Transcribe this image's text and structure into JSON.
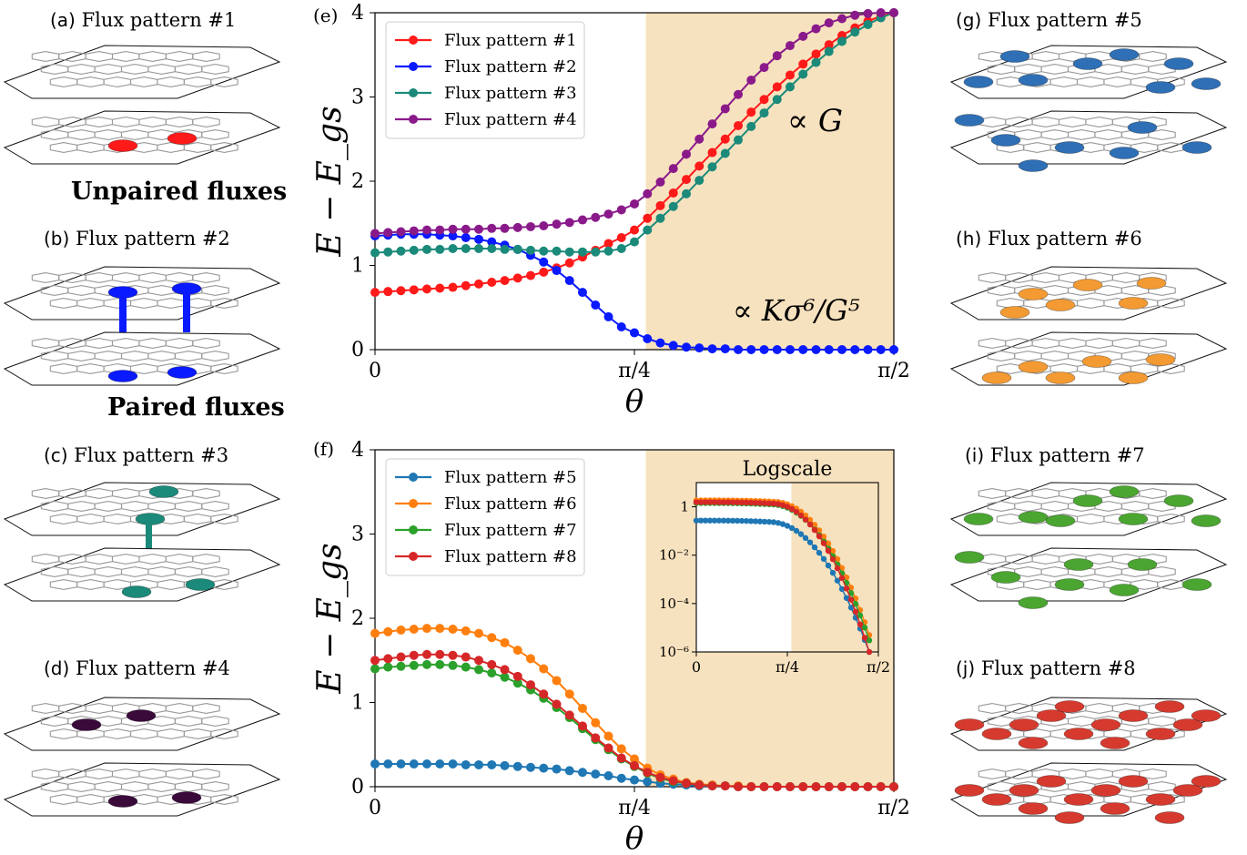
{
  "captions": {
    "a": {
      "label": "(a)",
      "text": "Flux pattern #1"
    },
    "b": {
      "label": "(b)",
      "text": "Flux pattern #2"
    },
    "c": {
      "label": "(c)",
      "text": "Flux pattern #3"
    },
    "d": {
      "label": "(d)",
      "text": "Flux pattern #4"
    },
    "g": {
      "label": "(g)",
      "text": "Flux pattern #5"
    },
    "h": {
      "label": "(h)",
      "text": "Flux pattern #6"
    },
    "i": {
      "label": "(i)",
      "text": "Flux pattern #7"
    },
    "j": {
      "label": "(j)",
      "text": "Flux pattern #8"
    }
  },
  "annotations": {
    "unpaired": "Unpaired fluxes",
    "paired": "Paired fluxes",
    "propto_g": "∝ G",
    "propto_k": "∝ Kσ⁶/G⁵"
  },
  "lattice_colors": {
    "p1": "#ff1a1a",
    "p2": "#0a1aff",
    "p3": "#1b8a7a",
    "p4": "#3a0a3a",
    "p5": "#2f6fb5",
    "p6": "#f39a33",
    "p7": "#4aa630",
    "p8": "#d63a2e"
  },
  "chart_data": [
    {
      "panel": "(e)",
      "type": "line",
      "xlabel": "θ",
      "ylabel": "E − E_gs",
      "xlim": [
        0,
        1.5708
      ],
      "ylim": [
        0,
        4
      ],
      "xticks": [
        {
          "v": 0,
          "label": "0"
        },
        {
          "v": 0.7854,
          "label": "π/4"
        },
        {
          "v": 1.5708,
          "label": "π/2"
        }
      ],
      "yticks": [
        0,
        1,
        2,
        3,
        4
      ],
      "shade_from": 0.82,
      "shade_color": "#f7e2bf",
      "legend": "top-left",
      "series": [
        {
          "name": "Flux pattern #1",
          "color": "#ff1a1a",
          "x": [
            0,
            0.0393,
            0.0785,
            0.1178,
            0.1571,
            0.1963,
            0.2356,
            0.2749,
            0.3142,
            0.3534,
            0.3927,
            0.432,
            0.4712,
            0.5105,
            0.5498,
            0.589,
            0.6283,
            0.6676,
            0.7069,
            0.7461,
            0.7854,
            0.8247,
            0.8639,
            0.9032,
            0.9425,
            0.9817,
            1.021,
            1.0603,
            1.0996,
            1.1388,
            1.1781,
            1.2174,
            1.2566,
            1.2959,
            1.3352,
            1.3744,
            1.4137,
            1.453,
            1.4923,
            1.5315,
            1.5708
          ],
          "y": [
            0.68,
            0.69,
            0.7,
            0.71,
            0.72,
            0.73,
            0.74,
            0.76,
            0.78,
            0.8,
            0.82,
            0.85,
            0.88,
            0.92,
            0.97,
            1.03,
            1.1,
            1.18,
            1.26,
            1.33,
            1.42,
            1.56,
            1.71,
            1.86,
            2.02,
            2.18,
            2.34,
            2.5,
            2.66,
            2.82,
            2.97,
            3.12,
            3.26,
            3.39,
            3.51,
            3.62,
            3.73,
            3.82,
            3.9,
            3.96,
            4.0
          ]
        },
        {
          "name": "Flux pattern #2",
          "color": "#0a1aff",
          "x": [
            0,
            0.0393,
            0.0785,
            0.1178,
            0.1571,
            0.1963,
            0.2356,
            0.2749,
            0.3142,
            0.3534,
            0.3927,
            0.432,
            0.4712,
            0.5105,
            0.5498,
            0.589,
            0.6283,
            0.6676,
            0.7069,
            0.7461,
            0.7854,
            0.8247,
            0.8639,
            0.9032,
            0.9425,
            0.9817,
            1.021,
            1.0603,
            1.0996,
            1.1388,
            1.1781,
            1.2174,
            1.2566,
            1.2959,
            1.3352,
            1.3744,
            1.4137,
            1.453,
            1.4923,
            1.5315,
            1.5708
          ],
          "y": [
            1.35,
            1.36,
            1.37,
            1.37,
            1.37,
            1.36,
            1.35,
            1.33,
            1.31,
            1.28,
            1.24,
            1.19,
            1.12,
            1.04,
            0.94,
            0.82,
            0.68,
            0.53,
            0.39,
            0.27,
            0.2,
            0.13,
            0.08,
            0.05,
            0.03,
            0.02,
            0.01,
            0.01,
            0.0,
            0.0,
            0.0,
            0.0,
            0.0,
            0.0,
            0.0,
            0.0,
            0.0,
            0.0,
            0.0,
            0.0,
            0.0
          ]
        },
        {
          "name": "Flux pattern #3",
          "color": "#1b8a7a",
          "x": [
            0,
            0.0393,
            0.0785,
            0.1178,
            0.1571,
            0.1963,
            0.2356,
            0.2749,
            0.3142,
            0.3534,
            0.3927,
            0.432,
            0.4712,
            0.5105,
            0.5498,
            0.589,
            0.6283,
            0.6676,
            0.7069,
            0.7461,
            0.7854,
            0.8247,
            0.8639,
            0.9032,
            0.9425,
            0.9817,
            1.021,
            1.0603,
            1.0996,
            1.1388,
            1.1781,
            1.2174,
            1.2566,
            1.2959,
            1.3352,
            1.3744,
            1.4137,
            1.453,
            1.4923,
            1.5315,
            1.5708
          ],
          "y": [
            1.15,
            1.16,
            1.17,
            1.18,
            1.19,
            1.19,
            1.2,
            1.2,
            1.2,
            1.2,
            1.19,
            1.19,
            1.18,
            1.17,
            1.17,
            1.16,
            1.16,
            1.16,
            1.17,
            1.2,
            1.28,
            1.42,
            1.56,
            1.7,
            1.85,
            2.01,
            2.17,
            2.33,
            2.49,
            2.65,
            2.81,
            2.97,
            3.12,
            3.27,
            3.41,
            3.54,
            3.66,
            3.77,
            3.86,
            3.94,
            4.0
          ]
        },
        {
          "name": "Flux pattern #4",
          "color": "#8a1a8a",
          "x": [
            0,
            0.0393,
            0.0785,
            0.1178,
            0.1571,
            0.1963,
            0.2356,
            0.2749,
            0.3142,
            0.3534,
            0.3927,
            0.432,
            0.4712,
            0.5105,
            0.5498,
            0.589,
            0.6283,
            0.6676,
            0.7069,
            0.7461,
            0.7854,
            0.8247,
            0.8639,
            0.9032,
            0.9425,
            0.9817,
            1.021,
            1.0603,
            1.0996,
            1.1388,
            1.1781,
            1.2174,
            1.2566,
            1.2959,
            1.3352,
            1.3744,
            1.4137,
            1.453,
            1.4923,
            1.5315,
            1.5708
          ],
          "y": [
            1.38,
            1.39,
            1.4,
            1.41,
            1.42,
            1.42,
            1.43,
            1.43,
            1.43,
            1.44,
            1.44,
            1.45,
            1.46,
            1.47,
            1.49,
            1.51,
            1.54,
            1.57,
            1.61,
            1.66,
            1.73,
            1.85,
            1.99,
            2.15,
            2.32,
            2.5,
            2.68,
            2.86,
            3.03,
            3.2,
            3.35,
            3.49,
            3.61,
            3.72,
            3.81,
            3.88,
            3.93,
            3.97,
            3.99,
            4.0,
            4.0
          ]
        }
      ]
    },
    {
      "panel": "(f)",
      "type": "line",
      "xlabel": "θ",
      "ylabel": "E − E_gs",
      "xlim": [
        0,
        1.5708
      ],
      "ylim": [
        0,
        4
      ],
      "xticks": [
        {
          "v": 0,
          "label": "0"
        },
        {
          "v": 0.7854,
          "label": "π/4"
        },
        {
          "v": 1.5708,
          "label": "π/2"
        }
      ],
      "yticks": [
        0,
        1,
        2,
        3,
        4
      ],
      "shade_from": 0.82,
      "shade_color": "#f7e2bf",
      "legend": "top-left",
      "series": [
        {
          "name": "Flux pattern #5",
          "color": "#1f77b4",
          "x": [
            0,
            0.0393,
            0.0785,
            0.1178,
            0.1571,
            0.1963,
            0.2356,
            0.2749,
            0.3142,
            0.3534,
            0.3927,
            0.432,
            0.4712,
            0.5105,
            0.5498,
            0.589,
            0.6283,
            0.6676,
            0.7069,
            0.7461,
            0.7854,
            0.8247,
            0.8639,
            0.9032,
            0.9425,
            0.9817,
            1.021,
            1.0603,
            1.0996,
            1.1388,
            1.1781,
            1.2174,
            1.2566,
            1.2959,
            1.3352,
            1.3744,
            1.4137,
            1.453,
            1.4923,
            1.5315,
            1.5708
          ],
          "y": [
            0.27,
            0.27,
            0.27,
            0.27,
            0.27,
            0.27,
            0.27,
            0.26,
            0.26,
            0.26,
            0.25,
            0.24,
            0.23,
            0.22,
            0.21,
            0.19,
            0.17,
            0.15,
            0.13,
            0.1,
            0.08,
            0.06,
            0.04,
            0.03,
            0.02,
            0.01,
            0.01,
            0.01,
            0.0,
            0.0,
            0.0,
            0.0,
            0.0,
            0.0,
            0.0,
            0.0,
            0.0,
            0.0,
            0.0,
            0.0,
            0.0
          ]
        },
        {
          "name": "Flux pattern #6",
          "color": "#ff7f0e",
          "x": [
            0,
            0.0393,
            0.0785,
            0.1178,
            0.1571,
            0.1963,
            0.2356,
            0.2749,
            0.3142,
            0.3534,
            0.3927,
            0.432,
            0.4712,
            0.5105,
            0.5498,
            0.589,
            0.6283,
            0.6676,
            0.7069,
            0.7461,
            0.7854,
            0.8247,
            0.8639,
            0.9032,
            0.9425,
            0.9817,
            1.021,
            1.0603,
            1.0996,
            1.1388,
            1.1781,
            1.2174,
            1.2566,
            1.2959,
            1.3352,
            1.3744,
            1.4137,
            1.453,
            1.4923,
            1.5315,
            1.5708
          ],
          "y": [
            1.82,
            1.84,
            1.86,
            1.87,
            1.88,
            1.88,
            1.87,
            1.85,
            1.82,
            1.77,
            1.71,
            1.62,
            1.52,
            1.4,
            1.26,
            1.1,
            0.93,
            0.76,
            0.6,
            0.45,
            0.33,
            0.22,
            0.14,
            0.09,
            0.05,
            0.03,
            0.02,
            0.01,
            0.01,
            0.0,
            0.0,
            0.0,
            0.0,
            0.0,
            0.0,
            0.0,
            0.0,
            0.0,
            0.0,
            0.0,
            0.0
          ]
        },
        {
          "name": "Flux pattern #7",
          "color": "#2ca02c",
          "x": [
            0,
            0.0393,
            0.0785,
            0.1178,
            0.1571,
            0.1963,
            0.2356,
            0.2749,
            0.3142,
            0.3534,
            0.3927,
            0.432,
            0.4712,
            0.5105,
            0.5498,
            0.589,
            0.6283,
            0.6676,
            0.7069,
            0.7461,
            0.7854,
            0.8247,
            0.8639,
            0.9032,
            0.9425,
            0.9817,
            1.021,
            1.0603,
            1.0996,
            1.1388,
            1.1781,
            1.2174,
            1.2566,
            1.2959,
            1.3352,
            1.3744,
            1.4137,
            1.453,
            1.4923,
            1.5315,
            1.5708
          ],
          "y": [
            1.4,
            1.42,
            1.43,
            1.44,
            1.45,
            1.45,
            1.44,
            1.42,
            1.39,
            1.35,
            1.3,
            1.23,
            1.15,
            1.05,
            0.94,
            0.82,
            0.69,
            0.56,
            0.44,
            0.33,
            0.24,
            0.16,
            0.1,
            0.06,
            0.04,
            0.02,
            0.01,
            0.01,
            0.0,
            0.0,
            0.0,
            0.0,
            0.0,
            0.0,
            0.0,
            0.0,
            0.0,
            0.0,
            0.0,
            0.0,
            0.0
          ]
        },
        {
          "name": "Flux pattern #8",
          "color": "#d62728",
          "x": [
            0,
            0.0393,
            0.0785,
            0.1178,
            0.1571,
            0.1963,
            0.2356,
            0.2749,
            0.3142,
            0.3534,
            0.3927,
            0.432,
            0.4712,
            0.5105,
            0.5498,
            0.589,
            0.6283,
            0.6676,
            0.7069,
            0.7461,
            0.7854,
            0.8247,
            0.8639,
            0.9032,
            0.9425,
            0.9817,
            1.021,
            1.0603,
            1.0996,
            1.1388,
            1.1781,
            1.2174,
            1.2566,
            1.2959,
            1.3352,
            1.3744,
            1.4137,
            1.453,
            1.4923,
            1.5315,
            1.5708
          ],
          "y": [
            1.5,
            1.52,
            1.54,
            1.56,
            1.57,
            1.57,
            1.56,
            1.54,
            1.5,
            1.45,
            1.39,
            1.31,
            1.21,
            1.1,
            0.98,
            0.85,
            0.72,
            0.58,
            0.46,
            0.34,
            0.25,
            0.17,
            0.11,
            0.07,
            0.04,
            0.02,
            0.01,
            0.01,
            0.0,
            0.0,
            0.0,
            0.0,
            0.0,
            0.0,
            0.0,
            0.0,
            0.0,
            0.0,
            0.0,
            0.0,
            0.0
          ]
        }
      ]
    },
    {
      "panel": "(f) inset",
      "type": "line",
      "title": "Logscale",
      "yscale": "log",
      "xlim": [
        0,
        1.5708
      ],
      "ylim": [
        1e-06,
        10
      ],
      "xticks": [
        {
          "v": 0,
          "label": "0"
        },
        {
          "v": 0.7854,
          "label": "π/4"
        },
        {
          "v": 1.5708,
          "label": "π/2"
        }
      ],
      "yticks": [
        {
          "v": 1,
          "label": "1"
        },
        {
          "v": 0.01,
          "label": "10⁻²"
        },
        {
          "v": 0.0001,
          "label": "10⁻⁴"
        },
        {
          "v": 1e-06,
          "label": "10⁻⁶"
        }
      ],
      "shade_from": 0.82,
      "series": [
        {
          "name": "Flux pattern #5",
          "color": "#1f77b4",
          "x_from": 0,
          "x_to": 1.4923,
          "count": 39,
          "start": 0.27,
          "knee": 0.62,
          "end": 1e-06
        },
        {
          "name": "Flux pattern #6",
          "color": "#ff7f0e",
          "x_from": 0,
          "x_to": 1.4923,
          "count": 39,
          "start": 1.85,
          "knee": 0.66,
          "end": 5e-06
        },
        {
          "name": "Flux pattern #7",
          "color": "#2ca02c",
          "x_from": 0,
          "x_to": 1.4923,
          "count": 39,
          "start": 1.42,
          "knee": 0.64,
          "end": 3e-06
        },
        {
          "name": "Flux pattern #8",
          "color": "#d62728",
          "x_from": 0,
          "x_to": 1.4923,
          "count": 39,
          "start": 1.55,
          "knee": 0.65,
          "end": 1e-06
        }
      ]
    }
  ]
}
